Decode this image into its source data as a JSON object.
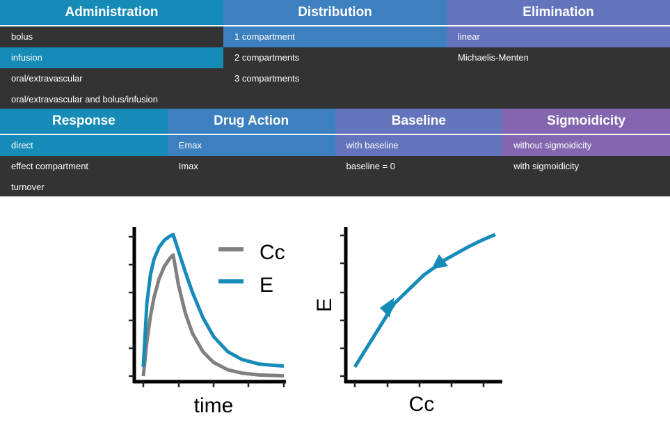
{
  "top_panels": [
    {
      "title": "Administration",
      "color": "#168bb8",
      "items": [
        "bolus",
        "infusion",
        "oral/extravascular",
        "oral/extravascular and bolus/infusion"
      ],
      "selected": 1
    },
    {
      "title": "Distribution",
      "color": "#3d80c0",
      "items": [
        "1 compartment",
        "2 compartments",
        "3 compartments"
      ],
      "selected": 0
    },
    {
      "title": "Elimination",
      "color": "#6474bc",
      "items": [
        "linear",
        "Michaelis-Menten"
      ],
      "selected": 0
    }
  ],
  "bottom_panels": [
    {
      "title": "Response",
      "color": "#168bb8",
      "items": [
        "direct",
        "effect compartment",
        "turnover"
      ],
      "selected": 0
    },
    {
      "title": "Drug Action",
      "color": "#3d80c0",
      "items": [
        "Emax",
        "Imax"
      ],
      "selected": 0
    },
    {
      "title": "Baseline",
      "color": "#6474bc",
      "items": [
        "with baseline",
        "baseline = 0"
      ],
      "selected": 0
    },
    {
      "title": "Sigmoidicity",
      "color": "#8466b0",
      "items": [
        "without sigmoidicity",
        "with sigmoidicity"
      ],
      "selected": 0
    }
  ],
  "chart_data": [
    {
      "type": "line",
      "xlabel": "time",
      "ylabel": "",
      "xlim": [
        0,
        4
      ],
      "ylim": [
        0,
        5
      ],
      "legend": [
        "Cc",
        "E"
      ],
      "legend_position": "top-right",
      "x": [
        0,
        0.1,
        0.2,
        0.3,
        0.45,
        0.6,
        0.75,
        0.85,
        1.0,
        1.2,
        1.4,
        1.7,
        2.0,
        2.4,
        2.8,
        3.3,
        4.0
      ],
      "series": [
        {
          "name": "Cc",
          "color": "#808080",
          "values": [
            0,
            1.22,
            2.13,
            2.8,
            3.5,
            3.94,
            4.22,
            4.35,
            3.27,
            2.24,
            1.53,
            0.87,
            0.49,
            0.23,
            0.11,
            0.04,
            0.01
          ]
        },
        {
          "name": "E",
          "color": "#168bb8",
          "values": [
            0.33,
            2.6,
            3.62,
            4.18,
            4.63,
            4.88,
            5.02,
            5.08,
            4.49,
            3.72,
            3.0,
            2.09,
            1.42,
            0.88,
            0.6,
            0.43,
            0.36
          ]
        }
      ]
    },
    {
      "type": "line",
      "xlabel": "Cc",
      "ylabel": "E",
      "xlim": [
        0,
        4.35
      ],
      "ylim": [
        0,
        5
      ],
      "color": "#168bb8"
    }
  ],
  "labels": {
    "legend_cc": "Cc",
    "legend_e": "E",
    "x1": "time",
    "x2": "Cc",
    "y2": "E"
  }
}
